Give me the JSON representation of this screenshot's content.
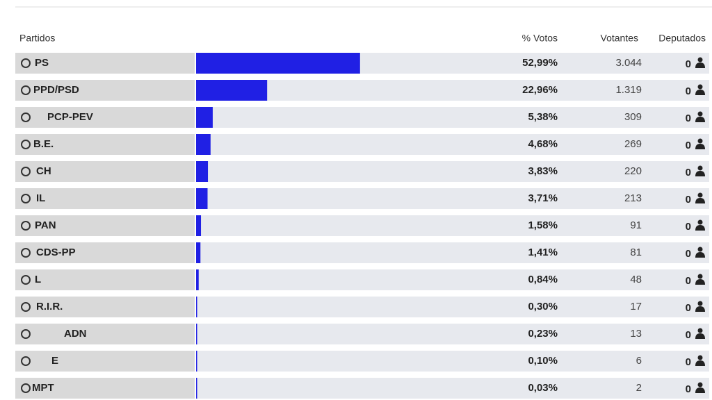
{
  "table": {
    "headers": [
      "Partidos",
      "% Votos",
      "Votantes",
      "Deputados"
    ],
    "rows": [
      {
        "party": "PS",
        "percent": 52.99,
        "percent_label": "52,99%",
        "votes": "3.044",
        "seats": 0
      },
      {
        "party": "PPD/PSD",
        "percent": 22.96,
        "percent_label": "22,96%",
        "votes": "1.319",
        "seats": 0
      },
      {
        "party": "PCP-PEV",
        "percent": 5.38,
        "percent_label": "5,38%",
        "votes": "309",
        "seats": 0
      },
      {
        "party": "B.E.",
        "percent": 4.68,
        "percent_label": "4,68%",
        "votes": "269",
        "seats": 0
      },
      {
        "party": "CH",
        "percent": 3.83,
        "percent_label": "3,83%",
        "votes": "220",
        "seats": 0
      },
      {
        "party": "IL",
        "percent": 3.71,
        "percent_label": "3,71%",
        "votes": "213",
        "seats": 0
      },
      {
        "party": "PAN",
        "percent": 1.58,
        "percent_label": "1,58%",
        "votes": "91",
        "seats": 0
      },
      {
        "party": "CDS-PP",
        "percent": 1.41,
        "percent_label": "1,41%",
        "votes": "81",
        "seats": 0
      },
      {
        "party": "L",
        "percent": 0.84,
        "percent_label": "0,84%",
        "votes": "48",
        "seats": 0
      },
      {
        "party": "R.I.R.",
        "percent": 0.3,
        "percent_label": "0,30%",
        "votes": "17",
        "seats": 0
      },
      {
        "party": "ADN",
        "percent": 0.23,
        "percent_label": "0,23%",
        "votes": "13",
        "seats": 0
      },
      {
        "party": "E",
        "percent": 0.1,
        "percent_label": "0,10%",
        "votes": "6",
        "seats": 0
      },
      {
        "party": "MPT",
        "percent": 0.03,
        "percent_label": "0,03%",
        "votes": "2",
        "seats": 0
      }
    ]
  }
}
